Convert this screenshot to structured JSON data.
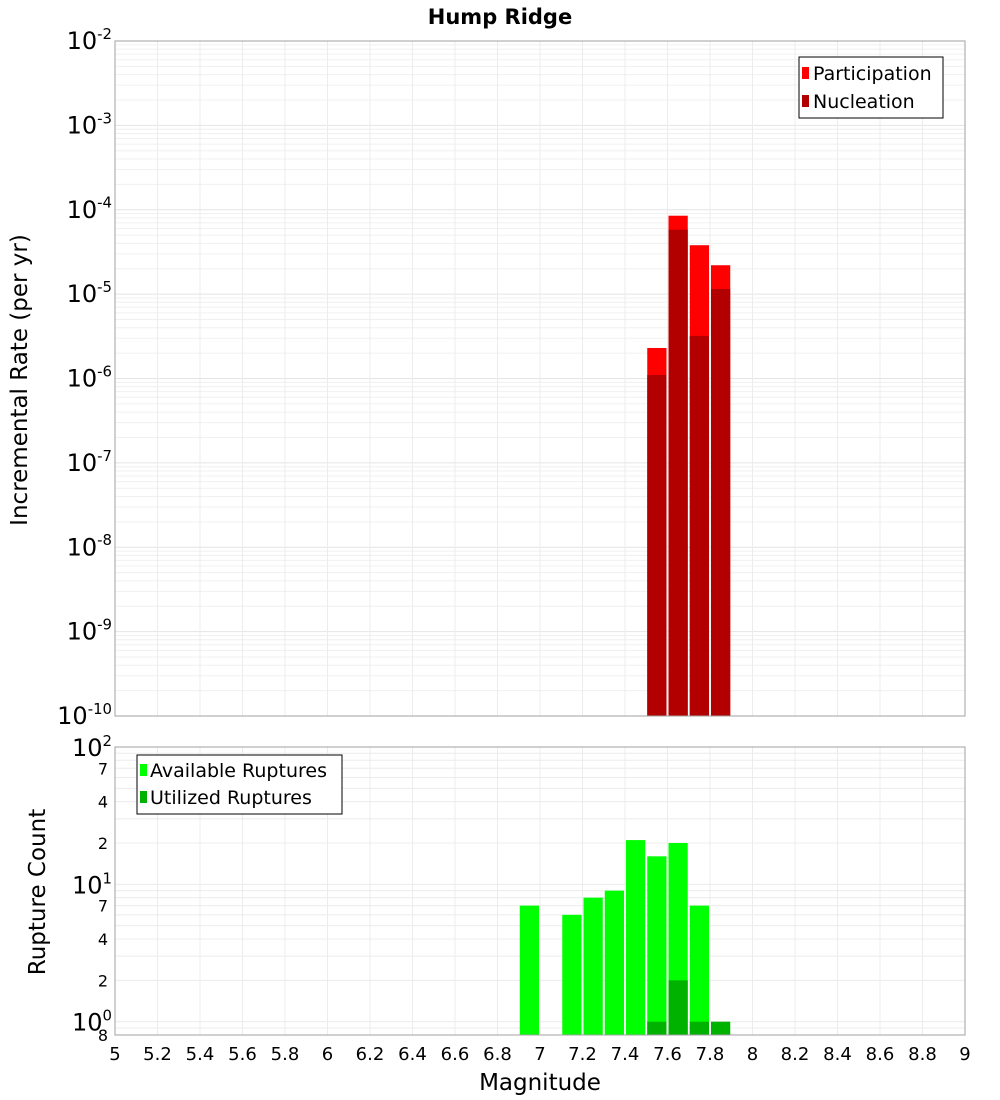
{
  "chart_data": [
    {
      "type": "bar",
      "title": "Hump Ridge",
      "ylabel": "Incremental Rate (per yr)",
      "xlabel": "",
      "yscale": "log",
      "ylim": [
        1e-10,
        0.01
      ],
      "xlim": [
        5,
        9
      ],
      "grid": true,
      "legend_position": "top-right",
      "y_tick_labels": [
        {
          "base": "10",
          "exp": "-10"
        },
        {
          "base": "10",
          "exp": "-9"
        },
        {
          "base": "10",
          "exp": "-8"
        },
        {
          "base": "10",
          "exp": "-7"
        },
        {
          "base": "10",
          "exp": "-6"
        },
        {
          "base": "10",
          "exp": "-5"
        },
        {
          "base": "10",
          "exp": "-4"
        },
        {
          "base": "10",
          "exp": "-3"
        },
        {
          "base": "10",
          "exp": "-2"
        }
      ],
      "x": [
        7.55,
        7.65,
        7.75,
        7.85
      ],
      "series": [
        {
          "name": "Participation",
          "color": "#ff0000",
          "values": [
            2.3e-06,
            8.5e-05,
            3.8e-05,
            2.2e-05
          ]
        },
        {
          "name": "Nucleation",
          "color": "#b20000",
          "values": [
            1.1e-06,
            5.8e-05,
            3.2e-06,
            1.15e-05
          ]
        }
      ]
    },
    {
      "type": "bar",
      "ylabel": "Rupture Count",
      "xlabel": "Magnitude",
      "yscale": "log",
      "ylim": [
        0.8,
        100
      ],
      "xlim": [
        5,
        9
      ],
      "grid": true,
      "legend_position": "top-left",
      "y_tick_labels": [
        {
          "value": 0.8,
          "base": "",
          "exp": "",
          "minor": "8"
        },
        {
          "value": 1,
          "base": "10",
          "exp": "0"
        },
        {
          "value": 2,
          "base": "",
          "exp": "",
          "minor": "2"
        },
        {
          "value": 4,
          "base": "",
          "exp": "",
          "minor": "4"
        },
        {
          "value": 7,
          "base": "",
          "exp": "",
          "minor": "7"
        },
        {
          "value": 10,
          "base": "10",
          "exp": "1"
        },
        {
          "value": 20,
          "base": "",
          "exp": "",
          "minor": "2"
        },
        {
          "value": 40,
          "base": "",
          "exp": "",
          "minor": "4"
        },
        {
          "value": 70,
          "base": "",
          "exp": "",
          "minor": "7"
        },
        {
          "value": 100,
          "base": "10",
          "exp": "2"
        }
      ],
      "x_tick_labels": [
        "5",
        "5.2",
        "5.4",
        "5.6",
        "5.8",
        "6",
        "6.2",
        "6.4",
        "6.6",
        "6.8",
        "7",
        "7.2",
        "7.4",
        "7.6",
        "7.8",
        "8",
        "8.2",
        "8.4",
        "8.6",
        "8.8",
        "9"
      ],
      "series": [
        {
          "name": "Available Ruptures",
          "color": "#00ff00",
          "x": [
            6.95,
            7.15,
            7.25,
            7.35,
            7.45,
            7.55,
            7.65,
            7.75
          ],
          "values": [
            7,
            6,
            8,
            9,
            21,
            16,
            20,
            7
          ]
        },
        {
          "name": "Utilized Ruptures",
          "color": "#00b200",
          "x": [
            7.55,
            7.65,
            7.75,
            7.85
          ],
          "values": [
            1,
            2,
            1,
            1
          ]
        }
      ]
    }
  ]
}
